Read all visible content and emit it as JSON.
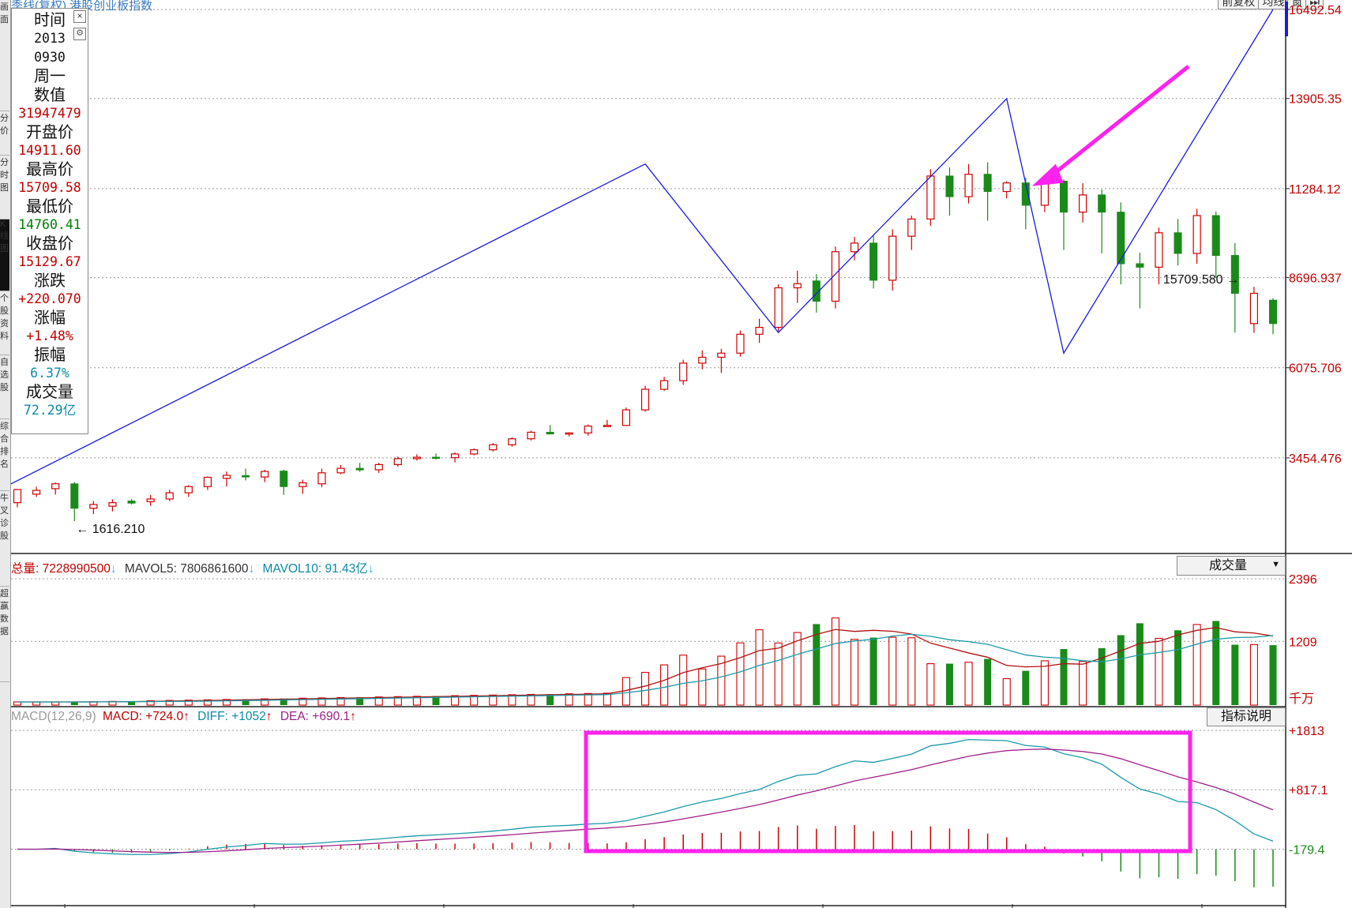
{
  "window": {
    "title": "季线(复权) 港股创业板指数",
    "left_tabs": [
      "画面",
      "分价",
      "分时图",
      "K线图",
      "个股资料",
      "自选股",
      "综合排名",
      "牛叉诊股",
      "超赢数据"
    ],
    "top_buttons": [
      "前复权",
      "均线",
      "窗",
      "⏭"
    ]
  },
  "info_panel": {
    "close_icon": "close-icon",
    "gear_icon": "gear-icon",
    "rows": [
      {
        "label": "时间",
        "value": "2013",
        "value2": "0930",
        "value3": "周一",
        "color": "#111111"
      },
      {
        "label": "数值",
        "value": "31947479",
        "color": "#c00000"
      },
      {
        "label": "开盘价",
        "value": "14911.60",
        "color": "#c00000"
      },
      {
        "label": "最高价",
        "value": "15709.58",
        "color": "#c00000"
      },
      {
        "label": "最低价",
        "value": "14760.41",
        "color": "#008000"
      },
      {
        "label": "收盘价",
        "value": "15129.67",
        "color": "#c00000"
      },
      {
        "label": "涨跌",
        "value": "+220.070",
        "color": "#c00000"
      },
      {
        "label": "涨幅",
        "value": "+1.48%",
        "color": "#c00000"
      },
      {
        "label": "振幅",
        "value": "6.37%",
        "color": "#0a8aa6"
      },
      {
        "label": "成交量",
        "value": "72.29亿",
        "color": "#0a8aa6"
      }
    ]
  },
  "volume_legend": {
    "total": "总量: 7228990500",
    "mavol5": "MAVOL5: 7806861600",
    "mavol10": "MAVOL10: 91.43亿",
    "arrow_down": "↓",
    "dropdown_label": "成交量",
    "unit": "千万"
  },
  "macd_legend": {
    "params": "MACD(12,26,9)",
    "macd": "MACD: +724.0",
    "diff": "DIFF: +1052",
    "dea": "DEA: +690.1",
    "arrow_up": "↑",
    "button": "指标说明"
  },
  "chart_data": [
    {
      "type": "candlestick",
      "ylim": [
        1616.21,
        16492.54
      ],
      "yticks": [
        {
          "value": 16492.54,
          "label": "16492.54"
        },
        {
          "value": 13905.35,
          "label": "13905.35"
        },
        {
          "value": 11284.12,
          "label": "11284.12"
        },
        {
          "value": 8696.937,
          "label": "8696.937"
        },
        {
          "value": 6075.706,
          "label": "6075.706"
        },
        {
          "value": 3454.476,
          "label": "3454.476"
        }
      ],
      "annotations": {
        "high_label": "15709.580",
        "low_label": "1616.210",
        "blue_trend": [
          [
            0,
            2700
          ],
          [
            33,
            12000
          ],
          [
            40,
            7100
          ],
          [
            52,
            13900
          ],
          [
            55,
            6500
          ],
          [
            66,
            16492
          ]
        ],
        "magenta_arrow_points_to_index": 53
      },
      "candles": [
        {
          "o": 2152,
          "h": 2551,
          "l": 2017,
          "c": 2534,
          "up": true
        },
        {
          "o": 2400,
          "h": 2616,
          "l": 2318,
          "c": 2510,
          "up": true
        },
        {
          "o": 2560,
          "h": 2735,
          "l": 2388,
          "c": 2702,
          "up": true
        },
        {
          "o": 2700,
          "h": 2750,
          "l": 1616,
          "c": 1990,
          "up": false
        },
        {
          "o": 1990,
          "h": 2202,
          "l": 1818,
          "c": 2100,
          "up": true
        },
        {
          "o": 2050,
          "h": 2248,
          "l": 1900,
          "c": 2152,
          "up": true
        },
        {
          "o": 2200,
          "h": 2258,
          "l": 2100,
          "c": 2140,
          "up": false
        },
        {
          "o": 2180,
          "h": 2380,
          "l": 2060,
          "c": 2260,
          "up": true
        },
        {
          "o": 2260,
          "h": 2530,
          "l": 2200,
          "c": 2440,
          "up": true
        },
        {
          "o": 2440,
          "h": 2660,
          "l": 2320,
          "c": 2620,
          "up": true
        },
        {
          "o": 2620,
          "h": 2916,
          "l": 2520,
          "c": 2890,
          "up": true
        },
        {
          "o": 2860,
          "h": 3058,
          "l": 2620,
          "c": 2948,
          "up": true
        },
        {
          "o": 2940,
          "h": 3141,
          "l": 2800,
          "c": 2900,
          "up": false
        },
        {
          "o": 2900,
          "h": 3110,
          "l": 2750,
          "c": 3060,
          "up": true
        },
        {
          "o": 3070,
          "h": 3110,
          "l": 2380,
          "c": 2620,
          "up": false
        },
        {
          "o": 2620,
          "h": 2820,
          "l": 2410,
          "c": 2730,
          "up": true
        },
        {
          "o": 2700,
          "h": 3141,
          "l": 2600,
          "c": 3020,
          "up": true
        },
        {
          "o": 3020,
          "h": 3250,
          "l": 2980,
          "c": 3150,
          "up": true
        },
        {
          "o": 3150,
          "h": 3310,
          "l": 3050,
          "c": 3105,
          "up": false
        },
        {
          "o": 3110,
          "h": 3310,
          "l": 3020,
          "c": 3260,
          "up": true
        },
        {
          "o": 3260,
          "h": 3488,
          "l": 3200,
          "c": 3432,
          "up": true
        },
        {
          "o": 3432,
          "h": 3560,
          "l": 3380,
          "c": 3474,
          "up": true
        },
        {
          "o": 3474,
          "h": 3582,
          "l": 3410,
          "c": 3460,
          "up": false
        },
        {
          "o": 3460,
          "h": 3610,
          "l": 3320,
          "c": 3568,
          "up": true
        },
        {
          "o": 3568,
          "h": 3730,
          "l": 3530,
          "c": 3690,
          "up": true
        },
        {
          "o": 3690,
          "h": 3886,
          "l": 3640,
          "c": 3837,
          "up": true
        },
        {
          "o": 3837,
          "h": 4049,
          "l": 3780,
          "c": 4010,
          "up": true
        },
        {
          "o": 4010,
          "h": 4246,
          "l": 3960,
          "c": 4200,
          "up": true
        },
        {
          "o": 4200,
          "h": 4408,
          "l": 4150,
          "c": 4150,
          "up": false
        },
        {
          "o": 4150,
          "h": 4200,
          "l": 4080,
          "c": 4180,
          "up": true
        },
        {
          "o": 4180,
          "h": 4426,
          "l": 4100,
          "c": 4380,
          "up": true
        },
        {
          "o": 4380,
          "h": 4560,
          "l": 4360,
          "c": 4400,
          "up": true
        },
        {
          "o": 4400,
          "h": 4920,
          "l": 4380,
          "c": 4850,
          "up": true
        },
        {
          "o": 4850,
          "h": 5551,
          "l": 4800,
          "c": 5450,
          "up": true
        },
        {
          "o": 5450,
          "h": 5813,
          "l": 5400,
          "c": 5700,
          "up": true
        },
        {
          "o": 5700,
          "h": 6310,
          "l": 5580,
          "c": 6210,
          "up": true
        },
        {
          "o": 6210,
          "h": 6580,
          "l": 6030,
          "c": 6380,
          "up": true
        },
        {
          "o": 6380,
          "h": 6626,
          "l": 5925,
          "c": 6500,
          "up": true
        },
        {
          "o": 6500,
          "h": 7160,
          "l": 6400,
          "c": 7050,
          "up": true
        },
        {
          "o": 7050,
          "h": 7500,
          "l": 6800,
          "c": 7250,
          "up": true
        },
        {
          "o": 7250,
          "h": 8500,
          "l": 7100,
          "c": 8400,
          "up": true
        },
        {
          "o": 8400,
          "h": 8900,
          "l": 7960,
          "c": 8520,
          "up": true
        },
        {
          "o": 8600,
          "h": 8800,
          "l": 7680,
          "c": 8010,
          "up": false
        },
        {
          "o": 8010,
          "h": 9600,
          "l": 7800,
          "c": 9450,
          "up": true
        },
        {
          "o": 9450,
          "h": 9880,
          "l": 9200,
          "c": 9700,
          "up": true
        },
        {
          "o": 9700,
          "h": 9920,
          "l": 8380,
          "c": 8620,
          "up": false
        },
        {
          "o": 8620,
          "h": 10100,
          "l": 8320,
          "c": 9900,
          "up": true
        },
        {
          "o": 9900,
          "h": 10500,
          "l": 9500,
          "c": 10400,
          "up": true
        },
        {
          "o": 10400,
          "h": 11850,
          "l": 10200,
          "c": 11650,
          "up": true
        },
        {
          "o": 11650,
          "h": 11900,
          "l": 10500,
          "c": 11050,
          "up": false
        },
        {
          "o": 11050,
          "h": 12000,
          "l": 10850,
          "c": 11700,
          "up": true
        },
        {
          "o": 11700,
          "h": 12050,
          "l": 10350,
          "c": 11200,
          "up": false
        },
        {
          "o": 11200,
          "h": 11500,
          "l": 11000,
          "c": 11450,
          "up": true
        },
        {
          "o": 11450,
          "h": 11600,
          "l": 10100,
          "c": 10800,
          "up": false
        },
        {
          "o": 10800,
          "h": 11650,
          "l": 10600,
          "c": 11500,
          "up": true
        },
        {
          "o": 11500,
          "h": 11550,
          "l": 9500,
          "c": 10600,
          "up": false
        },
        {
          "o": 10600,
          "h": 11440,
          "l": 10300,
          "c": 11100,
          "up": true
        },
        {
          "o": 11100,
          "h": 11250,
          "l": 9400,
          "c": 10600,
          "up": false
        },
        {
          "o": 10600,
          "h": 10880,
          "l": 8500,
          "c": 9100,
          "up": false
        },
        {
          "o": 9100,
          "h": 9420,
          "l": 7800,
          "c": 9000,
          "up": false
        },
        {
          "o": 9000,
          "h": 10150,
          "l": 8500,
          "c": 10000,
          "up": true
        },
        {
          "o": 10000,
          "h": 10400,
          "l": 9050,
          "c": 9400,
          "up": false
        },
        {
          "o": 9400,
          "h": 10700,
          "l": 9100,
          "c": 10500,
          "up": true
        },
        {
          "o": 10500,
          "h": 10620,
          "l": 8700,
          "c": 9340,
          "up": false
        },
        {
          "o": 9340,
          "h": 9700,
          "l": 7100,
          "c": 8240,
          "up": false
        },
        {
          "o": 8240,
          "h": 8430,
          "l": 7090,
          "c": 7360,
          "up": true
        },
        {
          "o": 7360,
          "h": 8100,
          "l": 7050,
          "c": 8040,
          "up": false
        }
      ]
    },
    {
      "type": "bar",
      "title": "成交量",
      "ylim": [
        0,
        2396
      ],
      "yticks": [
        {
          "value": 2396,
          "label": "2396"
        },
        {
          "value": 1209,
          "label": "1209"
        }
      ]
    },
    {
      "type": "line",
      "title": "MACD(12,26,9)",
      "ylim": [
        -1100,
        1813
      ],
      "yticks": [
        {
          "value": 1813,
          "label": "+1813"
        },
        {
          "value": 817.1,
          "label": "+817.1"
        },
        {
          "value": -179.4,
          "label": "-179.4"
        }
      ]
    }
  ]
}
